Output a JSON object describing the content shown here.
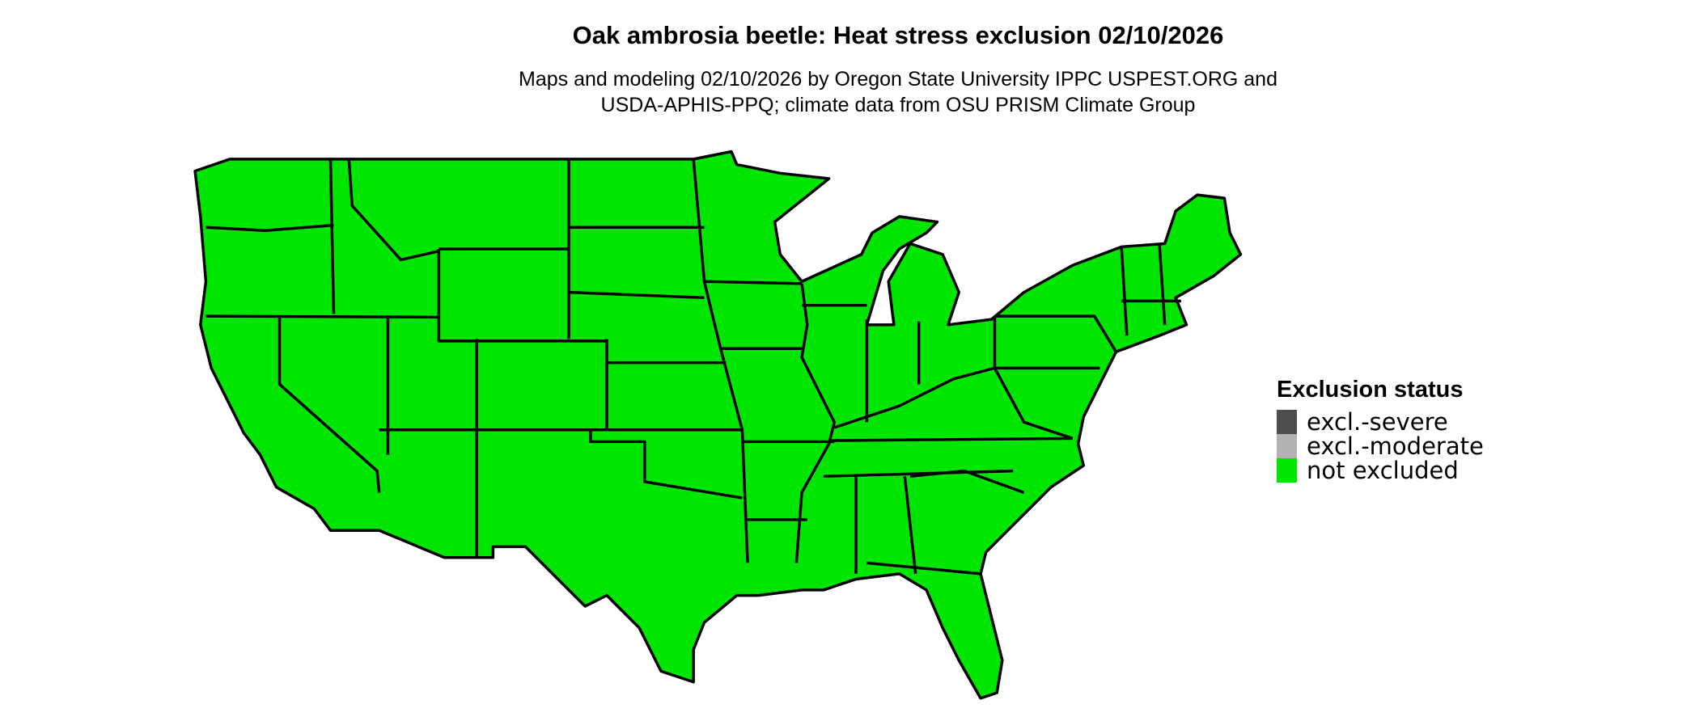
{
  "title": "Oak ambrosia beetle: Heat stress exclusion 02/10/2026",
  "subtitle_line1": "Maps and modeling 02/10/2026 by Oregon State University IPPC USPEST.ORG and",
  "subtitle_line2": "USDA-APHIS-PPQ; climate data from OSU PRISM Climate Group",
  "map": {
    "region": "Contiguous United States",
    "fill_color": "#00e600",
    "border_color": "#000000",
    "status_shown": "not excluded"
  },
  "legend": {
    "title": "Exclusion status",
    "items": [
      {
        "label": "excl.-severe",
        "color": "#4d4d4d"
      },
      {
        "label": "excl.-moderate",
        "color": "#b3b3b3"
      },
      {
        "label": "not excluded",
        "color": "#00e600"
      }
    ]
  }
}
